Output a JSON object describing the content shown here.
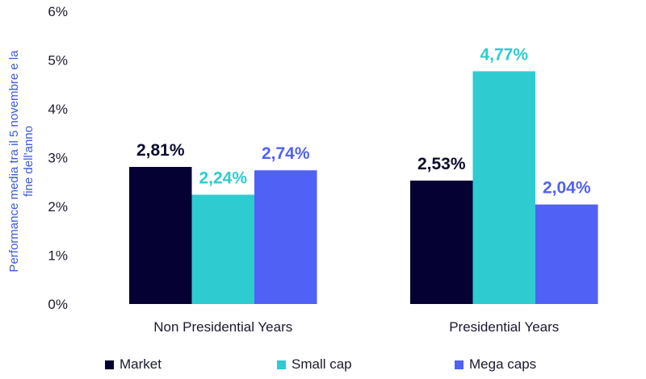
{
  "chart_data": {
    "type": "bar",
    "title": "",
    "xlabel": "",
    "ylabel": "Performance media tra il 5 novembre e la fine dell'anno",
    "ylabel_lines": [
      "Performance media tra il 5 novembre e la",
      "fine dell'anno"
    ],
    "ylim": [
      0,
      6
    ],
    "yticks": [
      "0%",
      "1%",
      "2%",
      "3%",
      "4%",
      "5%",
      "6%"
    ],
    "grid": false,
    "legend_position": "bottom",
    "categories": [
      "Non Presidential Years",
      "Presidential Years"
    ],
    "series": [
      {
        "name": "Market",
        "color": "#050132",
        "values": [
          2.81,
          2.53
        ],
        "labels": [
          "2,81%",
          "2,53%"
        ],
        "label_color": "#0b0b2e"
      },
      {
        "name": "Small cap",
        "color": "#2ecbd1",
        "values": [
          2.24,
          4.77
        ],
        "labels": [
          "2,24%",
          "4,77%"
        ],
        "label_color": "#2ecbd1"
      },
      {
        "name": "Mega caps",
        "color": "#5061f5",
        "values": [
          2.74,
          2.04
        ],
        "labels": [
          "2,74%",
          "2,04%"
        ],
        "label_color": "#5061f5"
      }
    ]
  }
}
